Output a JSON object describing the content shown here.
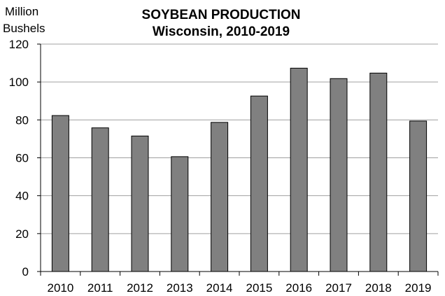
{
  "chart_data": {
    "type": "bar",
    "title": [
      "SOYBEAN PRODUCTION",
      "Wisconsin, 2010-2019"
    ],
    "ylabel": [
      "Million",
      "Bushels"
    ],
    "xlabel": "",
    "categories": [
      "2010",
      "2011",
      "2012",
      "2013",
      "2014",
      "2015",
      "2016",
      "2017",
      "2018",
      "2019"
    ],
    "values": [
      82.3,
      75.8,
      71.5,
      60.6,
      78.7,
      92.6,
      107.3,
      101.8,
      104.7,
      79.4
    ],
    "ylim": [
      0,
      120
    ],
    "yticks": [
      0,
      20,
      40,
      60,
      80,
      100,
      120
    ],
    "grid": true,
    "bar_color": "#808080"
  }
}
